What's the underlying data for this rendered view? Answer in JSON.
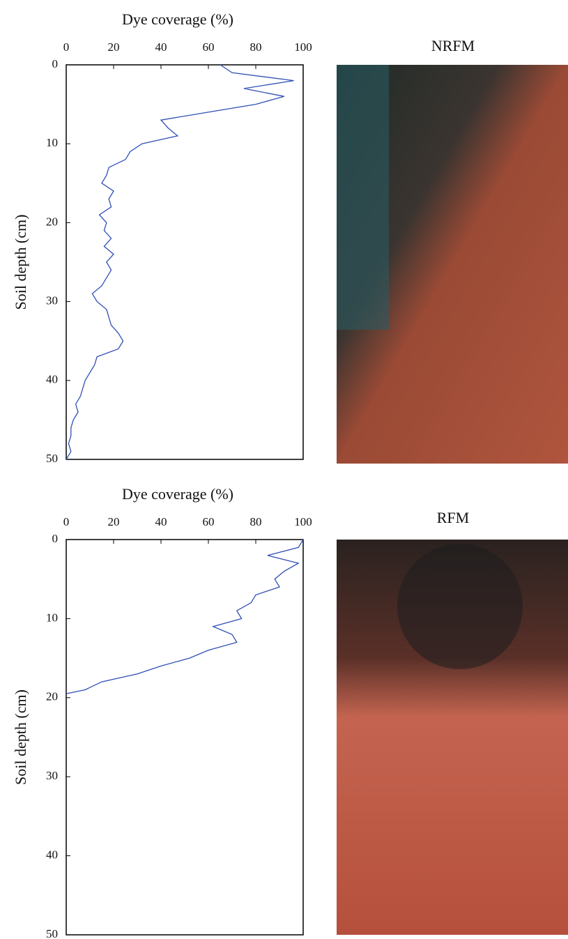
{
  "chart_data": [
    {
      "type": "line",
      "title": "NRFM",
      "ylabel": "Dye coverage (%)",
      "xlabel": "Soil depth (cm)",
      "x": [
        0,
        1,
        2,
        3,
        4,
        5,
        6,
        7,
        8,
        9,
        10,
        11,
        12,
        13,
        14,
        15,
        16,
        17,
        18,
        19,
        20,
        21,
        22,
        23,
        24,
        25,
        26,
        27,
        28,
        29,
        30,
        31,
        32,
        33,
        34,
        35,
        36,
        37,
        38,
        39,
        40,
        41,
        42,
        43,
        44,
        45,
        46,
        47,
        48,
        49,
        50
      ],
      "values": [
        65,
        70,
        96,
        75,
        92,
        80,
        60,
        40,
        43,
        47,
        32,
        27,
        25,
        18,
        17,
        15,
        20,
        18,
        19,
        14,
        17,
        16,
        19,
        16,
        20,
        17,
        19,
        17,
        15,
        11,
        13,
        17,
        18,
        19,
        22,
        24,
        22,
        13,
        12,
        10,
        8,
        7,
        6,
        4,
        5,
        3,
        2,
        2,
        1,
        2,
        0
      ],
      "color": "#2f4fb5",
      "ylim": [
        0,
        100
      ],
      "yticks": [
        0,
        20,
        40,
        60,
        80,
        100
      ],
      "xlim": [
        0,
        50
      ],
      "xticks": [
        0,
        10,
        20,
        30,
        40,
        50
      ]
    },
    {
      "type": "line",
      "title": "RFM",
      "ylabel": "Dye coverage (%)",
      "xlabel": "Soil depth (cm)",
      "x": [
        0,
        1,
        2,
        3,
        4,
        5,
        6,
        7,
        8,
        9,
        10,
        11,
        12,
        13,
        14,
        15,
        16,
        17,
        18,
        19,
        19.5
      ],
      "values": [
        100,
        98,
        85,
        98,
        92,
        88,
        90,
        80,
        78,
        72,
        74,
        62,
        70,
        72,
        60,
        52,
        40,
        30,
        15,
        8,
        0
      ],
      "color": "#2f4fb5",
      "ylim": [
        0,
        100
      ],
      "yticks": [
        0,
        20,
        40,
        60,
        80,
        100
      ],
      "xlim": [
        0,
        50
      ],
      "xticks": [
        0,
        10,
        20,
        30,
        40,
        50
      ]
    }
  ]
}
